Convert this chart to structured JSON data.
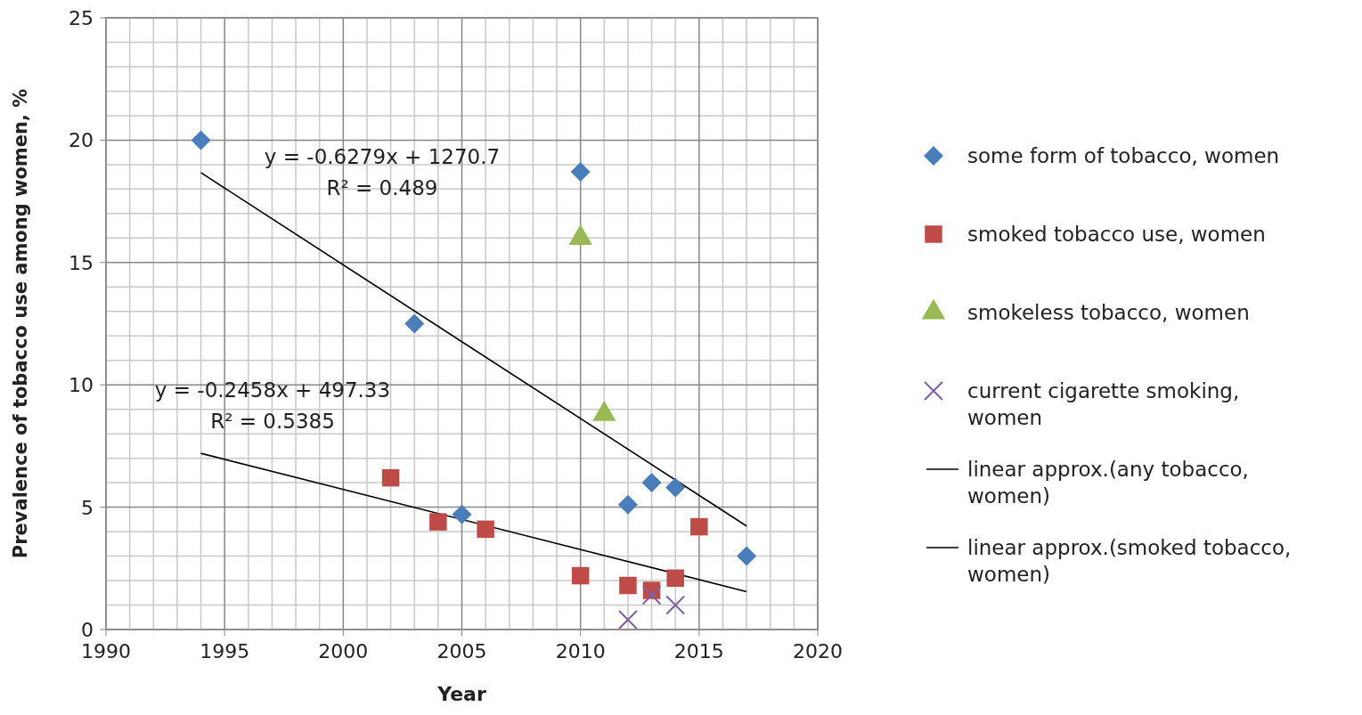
{
  "chart_data": {
    "type": "scatter",
    "xlabel": "Year",
    "ylabel": "Prevalence of tobacco use among women, %",
    "xlim": [
      1990,
      2020
    ],
    "xticks": [
      1990,
      1995,
      2000,
      2005,
      2010,
      2015,
      2020
    ],
    "ylim": [
      0,
      25
    ],
    "yticks": [
      0,
      5,
      10,
      15,
      20,
      25
    ],
    "grid": true,
    "legend": "right",
    "series": [
      {
        "name": "some form of tobacco, women",
        "color": "#4a7ebb",
        "marker": "diamond",
        "x": [
          1994,
          2003,
          2005,
          2010,
          2012,
          2013,
          2014,
          2017
        ],
        "values": [
          20,
          12.5,
          4.7,
          18.7,
          5.1,
          6.0,
          5.8,
          3.0
        ]
      },
      {
        "name": "smoked tobacco use, women",
        "color": "#be4b48",
        "marker": "square",
        "x": [
          2002,
          2004,
          2006,
          2010,
          2012,
          2013,
          2014,
          2015
        ],
        "values": [
          6.2,
          4.4,
          4.1,
          2.2,
          1.8,
          1.6,
          2.1,
          4.2
        ]
      },
      {
        "name": "smokeless tobacco, women",
        "color": "#98b954",
        "marker": "triangle",
        "x": [
          2010,
          2011
        ],
        "values": [
          16,
          8.8
        ]
      },
      {
        "name": "current cigarette smoking, women",
        "color": "#7d60a0",
        "marker": "cross",
        "x": [
          2012,
          2013,
          2014
        ],
        "values": [
          0.4,
          1.4,
          1.0
        ]
      },
      {
        "name": "linear approx.(any tobacco, women)",
        "type": "line",
        "color": "#000000",
        "x": [
          1994,
          2017
        ],
        "values": [
          18.67,
          4.23
        ]
      },
      {
        "name": "linear approx.(smoked tobacco, women)",
        "type": "line",
        "color": "#000000",
        "x": [
          1994,
          2017
        ],
        "values": [
          7.2,
          1.55
        ]
      }
    ],
    "annotations": [
      "y = -0.6279x + 1270.7",
      "R² = 0.489",
      "y = -0.2458x + 497.33",
      "R² = 0.5385"
    ]
  }
}
